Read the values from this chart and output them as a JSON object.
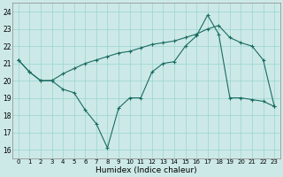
{
  "xlabel": "Humidex (Indice chaleur)",
  "bg_color": "#cce9e7",
  "grid_color": "#99d4d0",
  "line_color": "#1a6b62",
  "xlim": [
    -0.5,
    23.5
  ],
  "ylim": [
    15.5,
    24.5
  ],
  "yticks": [
    16,
    17,
    18,
    19,
    20,
    21,
    22,
    23,
    24
  ],
  "xticks": [
    0,
    1,
    2,
    3,
    4,
    5,
    6,
    7,
    8,
    9,
    10,
    11,
    12,
    13,
    14,
    15,
    16,
    17,
    18,
    19,
    20,
    21,
    22,
    23
  ],
  "line1_x": [
    0,
    1,
    2,
    3,
    4,
    5,
    6,
    7,
    8,
    9,
    10,
    11,
    12,
    13,
    14,
    15,
    16,
    17,
    18,
    19,
    20,
    21,
    22,
    23
  ],
  "line1_y": [
    21.2,
    20.5,
    20.0,
    20.0,
    19.5,
    19.3,
    18.3,
    17.5,
    16.1,
    18.4,
    19.0,
    19.0,
    20.5,
    21.0,
    21.1,
    22.0,
    22.6,
    23.8,
    22.7,
    19.0,
    19.0,
    18.9,
    18.8,
    18.5
  ],
  "line2_x": [
    0,
    1,
    2,
    3,
    4,
    5,
    6,
    7,
    8,
    9,
    10,
    11,
    12,
    13,
    14,
    15,
    16,
    17,
    18,
    19,
    20,
    21,
    22,
    23
  ],
  "line2_y": [
    21.2,
    20.5,
    20.0,
    20.0,
    20.4,
    20.7,
    21.0,
    21.2,
    21.4,
    21.6,
    21.7,
    21.9,
    22.1,
    22.2,
    22.3,
    22.5,
    22.7,
    23.0,
    23.2,
    22.5,
    22.2,
    22.0,
    21.2,
    18.5
  ]
}
